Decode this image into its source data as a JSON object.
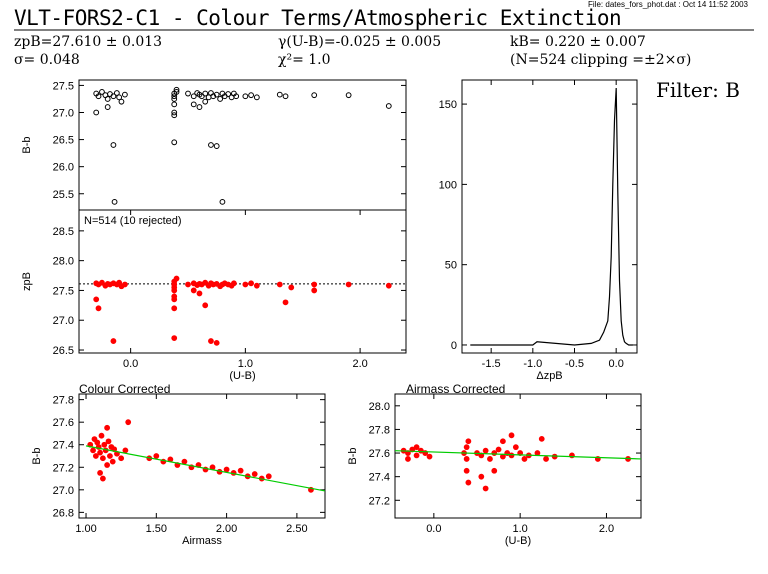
{
  "header": {
    "title": "VLT-FORS2-C1 - Colour Terms/Atmospheric Extinction",
    "file_note": "File: dates_fors_phot.dat : Oct 14 11:52 2003",
    "zp": "zpB=27.610 ± 0.013",
    "sigma": "σ= 0.048",
    "gamma": "γ(U-B)=-0.025 ± 0.005",
    "chi2": "χ²=  1.0",
    "k": "kB= 0.220 ± 0.007",
    "n_clip": "(N=524 clipping =±2×σ)",
    "filter": "Filter: B"
  },
  "chart_data": [
    {
      "name": "B-b vs (U-B)",
      "type": "scatter",
      "xlabel": "",
      "ylabel": "B-b",
      "xlim": [
        -0.45,
        2.4
      ],
      "ylim": [
        25.2,
        27.6
      ],
      "yticks": [
        25.5,
        26.0,
        26.5,
        27.0,
        27.5
      ],
      "marker_color": "#000000",
      "points": [
        [
          -0.3,
          27.35
        ],
        [
          -0.28,
          27.3
        ],
        [
          -0.25,
          27.38
        ],
        [
          -0.22,
          27.32
        ],
        [
          -0.2,
          27.25
        ],
        [
          -0.18,
          27.34
        ],
        [
          -0.15,
          27.3
        ],
        [
          -0.12,
          27.36
        ],
        [
          -0.1,
          27.28
        ],
        [
          -0.08,
          27.2
        ],
        [
          -0.05,
          27.33
        ],
        [
          -0.3,
          27.0
        ],
        [
          -0.2,
          27.1
        ],
        [
          -0.15,
          26.4
        ],
        [
          -0.14,
          25.35
        ],
        [
          0.38,
          27.35
        ],
        [
          0.38,
          27.3
        ],
        [
          0.38,
          27.25
        ],
        [
          0.38,
          27.15
        ],
        [
          0.38,
          27.0
        ],
        [
          0.38,
          26.95
        ],
        [
          0.38,
          26.45
        ],
        [
          0.4,
          27.38
        ],
        [
          0.4,
          27.42
        ],
        [
          0.5,
          27.35
        ],
        [
          0.55,
          27.3
        ],
        [
          0.58,
          27.36
        ],
        [
          0.6,
          27.33
        ],
        [
          0.62,
          27.3
        ],
        [
          0.65,
          27.35
        ],
        [
          0.68,
          27.28
        ],
        [
          0.7,
          27.36
        ],
        [
          0.72,
          27.3
        ],
        [
          0.75,
          27.33
        ],
        [
          0.78,
          27.25
        ],
        [
          0.8,
          27.35
        ],
        [
          0.82,
          27.3
        ],
        [
          0.85,
          27.34
        ],
        [
          0.88,
          27.28
        ],
        [
          0.9,
          27.35
        ],
        [
          0.92,
          27.3
        ],
        [
          0.55,
          27.15
        ],
        [
          0.6,
          27.1
        ],
        [
          0.65,
          27.2
        ],
        [
          0.7,
          26.4
        ],
        [
          0.75,
          26.38
        ],
        [
          0.8,
          25.35
        ],
        [
          1.0,
          27.3
        ],
        [
          1.05,
          27.32
        ],
        [
          1.1,
          27.28
        ],
        [
          1.3,
          27.33
        ],
        [
          1.35,
          27.3
        ],
        [
          1.6,
          27.32
        ],
        [
          1.9,
          27.32
        ],
        [
          2.25,
          27.12
        ]
      ]
    },
    {
      "name": "zpB vs (U-B)",
      "type": "scatter",
      "xlabel": "(U-B)",
      "ylabel": "zpB",
      "xlim": [
        -0.45,
        2.4
      ],
      "ylim": [
        26.45,
        28.85
      ],
      "yticks": [
        26.5,
        27.0,
        27.5,
        28.0,
        28.5
      ],
      "xticks": [
        0.0,
        1.0,
        2.0
      ],
      "annotation": "N=514 (10 rejected)",
      "reference_line": 27.61,
      "marker_color": "#ff0000",
      "points": [
        [
          -0.3,
          27.62
        ],
        [
          -0.28,
          27.6
        ],
        [
          -0.25,
          27.63
        ],
        [
          -0.22,
          27.58
        ],
        [
          -0.2,
          27.61
        ],
        [
          -0.18,
          27.6
        ],
        [
          -0.15,
          27.62
        ],
        [
          -0.12,
          27.6
        ],
        [
          -0.1,
          27.63
        ],
        [
          -0.08,
          27.57
        ],
        [
          -0.05,
          27.6
        ],
        [
          -0.3,
          27.35
        ],
        [
          -0.28,
          27.2
        ],
        [
          -0.15,
          26.65
        ],
        [
          0.38,
          27.65
        ],
        [
          0.38,
          27.6
        ],
        [
          0.38,
          27.55
        ],
        [
          0.38,
          27.5
        ],
        [
          0.38,
          27.4
        ],
        [
          0.38,
          27.35
        ],
        [
          0.38,
          27.2
        ],
        [
          0.38,
          26.7
        ],
        [
          0.4,
          27.7
        ],
        [
          0.5,
          27.6
        ],
        [
          0.55,
          27.62
        ],
        [
          0.58,
          27.59
        ],
        [
          0.6,
          27.61
        ],
        [
          0.62,
          27.6
        ],
        [
          0.65,
          27.63
        ],
        [
          0.68,
          27.58
        ],
        [
          0.7,
          27.62
        ],
        [
          0.72,
          27.6
        ],
        [
          0.75,
          27.61
        ],
        [
          0.78,
          27.57
        ],
        [
          0.8,
          27.6
        ],
        [
          0.82,
          27.62
        ],
        [
          0.85,
          27.6
        ],
        [
          0.88,
          27.58
        ],
        [
          0.9,
          27.62
        ],
        [
          0.55,
          27.5
        ],
        [
          0.6,
          27.45
        ],
        [
          0.65,
          27.25
        ],
        [
          0.7,
          26.65
        ],
        [
          0.75,
          26.62
        ],
        [
          1.0,
          27.6
        ],
        [
          1.05,
          27.62
        ],
        [
          1.1,
          27.58
        ],
        [
          1.3,
          27.6
        ],
        [
          1.35,
          27.3
        ],
        [
          1.4,
          27.55
        ],
        [
          1.6,
          27.6
        ],
        [
          1.6,
          27.5
        ],
        [
          1.9,
          27.6
        ],
        [
          2.25,
          27.58
        ]
      ]
    },
    {
      "name": "Delta zpB histogram",
      "type": "line",
      "xlabel": "ΔzpB",
      "ylabel": "",
      "xlim": [
        -1.85,
        0.25
      ],
      "ylim": [
        -5,
        165
      ],
      "xticks": [
        -1.5,
        -1.0,
        -0.5,
        0.0
      ],
      "yticks": [
        0,
        50,
        100,
        150
      ],
      "x": [
        -1.75,
        -1.0,
        -0.95,
        -0.5,
        -0.3,
        -0.2,
        -0.15,
        -0.1,
        -0.08,
        -0.06,
        -0.04,
        -0.02,
        0.0,
        0.02,
        0.04,
        0.06,
        0.08,
        0.1,
        0.12,
        0.15,
        0.2
      ],
      "y": [
        0,
        0,
        2,
        0,
        1,
        3,
        8,
        15,
        30,
        55,
        100,
        140,
        160,
        95,
        40,
        15,
        6,
        2,
        1,
        0,
        0
      ]
    },
    {
      "name": "Colour Corrected",
      "type": "scatter",
      "title": "Colour Corrected",
      "xlabel": "Airmass",
      "ylabel": "B-b",
      "xlim": [
        0.95,
        2.7
      ],
      "ylim": [
        26.75,
        27.85
      ],
      "xticks": [
        1.0,
        1.5,
        2.0,
        2.5
      ],
      "yticks": [
        26.8,
        27.0,
        27.2,
        27.4,
        27.6,
        27.8
      ],
      "fit_line": [
        [
          1.0,
          27.39
        ],
        [
          2.7,
          26.99
        ]
      ],
      "fit_color": "#00cc00",
      "marker_color": "#ff0000",
      "points": [
        [
          1.03,
          27.4
        ],
        [
          1.05,
          27.35
        ],
        [
          1.06,
          27.45
        ],
        [
          1.07,
          27.3
        ],
        [
          1.08,
          27.42
        ],
        [
          1.09,
          27.38
        ],
        [
          1.1,
          27.33
        ],
        [
          1.11,
          27.48
        ],
        [
          1.12,
          27.28
        ],
        [
          1.13,
          27.4
        ],
        [
          1.14,
          27.35
        ],
        [
          1.15,
          27.22
        ],
        [
          1.16,
          27.43
        ],
        [
          1.17,
          27.3
        ],
        [
          1.18,
          27.38
        ],
        [
          1.19,
          27.25
        ],
        [
          1.2,
          27.36
        ],
        [
          1.22,
          27.32
        ],
        [
          1.25,
          27.28
        ],
        [
          1.28,
          27.35
        ],
        [
          1.1,
          27.15
        ],
        [
          1.12,
          27.1
        ],
        [
          1.15,
          27.55
        ],
        [
          1.3,
          27.6
        ],
        [
          1.45,
          27.28
        ],
        [
          1.5,
          27.3
        ],
        [
          1.55,
          27.25
        ],
        [
          1.6,
          27.27
        ],
        [
          1.65,
          27.22
        ],
        [
          1.7,
          27.25
        ],
        [
          1.75,
          27.2
        ],
        [
          1.8,
          27.22
        ],
        [
          1.85,
          27.18
        ],
        [
          1.9,
          27.2
        ],
        [
          1.95,
          27.16
        ],
        [
          2.0,
          27.18
        ],
        [
          2.05,
          27.15
        ],
        [
          2.1,
          27.17
        ],
        [
          2.15,
          27.12
        ],
        [
          2.2,
          27.14
        ],
        [
          2.25,
          27.1
        ],
        [
          2.3,
          27.12
        ],
        [
          2.6,
          27.0
        ]
      ]
    },
    {
      "name": "Airmass Corrected",
      "type": "scatter",
      "title": "Airmass Corrected",
      "xlabel": "(U-B)",
      "ylabel": "B-b",
      "xlim": [
        -0.45,
        2.4
      ],
      "ylim": [
        27.05,
        28.1
      ],
      "xticks": [
        0.0,
        1.0,
        2.0
      ],
      "yticks": [
        27.2,
        27.4,
        27.6,
        27.8,
        28.0
      ],
      "fit_line": [
        [
          -0.45,
          27.62
        ],
        [
          2.4,
          27.55
        ]
      ],
      "fit_color": "#00cc00",
      "marker_color": "#ff0000",
      "points": [
        [
          -0.35,
          27.62
        ],
        [
          -0.3,
          27.6
        ],
        [
          -0.25,
          27.63
        ],
        [
          -0.2,
          27.58
        ],
        [
          -0.15,
          27.62
        ],
        [
          -0.1,
          27.6
        ],
        [
          -0.05,
          27.57
        ],
        [
          -0.3,
          27.55
        ],
        [
          -0.2,
          27.65
        ],
        [
          0.35,
          27.6
        ],
        [
          0.38,
          27.55
        ],
        [
          0.38,
          27.65
        ],
        [
          0.38,
          27.45
        ],
        [
          0.4,
          27.35
        ],
        [
          0.4,
          27.7
        ],
        [
          0.5,
          27.6
        ],
        [
          0.55,
          27.58
        ],
        [
          0.6,
          27.62
        ],
        [
          0.65,
          27.55
        ],
        [
          0.7,
          27.6
        ],
        [
          0.75,
          27.63
        ],
        [
          0.8,
          27.57
        ],
        [
          0.85,
          27.6
        ],
        [
          0.9,
          27.58
        ],
        [
          0.95,
          27.65
        ],
        [
          1.0,
          27.6
        ],
        [
          1.05,
          27.55
        ],
        [
          0.55,
          27.4
        ],
        [
          0.6,
          27.3
        ],
        [
          0.7,
          27.45
        ],
        [
          0.8,
          27.7
        ],
        [
          0.9,
          27.75
        ],
        [
          1.1,
          27.58
        ],
        [
          1.2,
          27.6
        ],
        [
          1.25,
          27.72
        ],
        [
          1.3,
          27.55
        ],
        [
          1.4,
          27.57
        ],
        [
          1.6,
          27.58
        ],
        [
          1.9,
          27.55
        ],
        [
          2.25,
          27.55
        ]
      ]
    }
  ]
}
